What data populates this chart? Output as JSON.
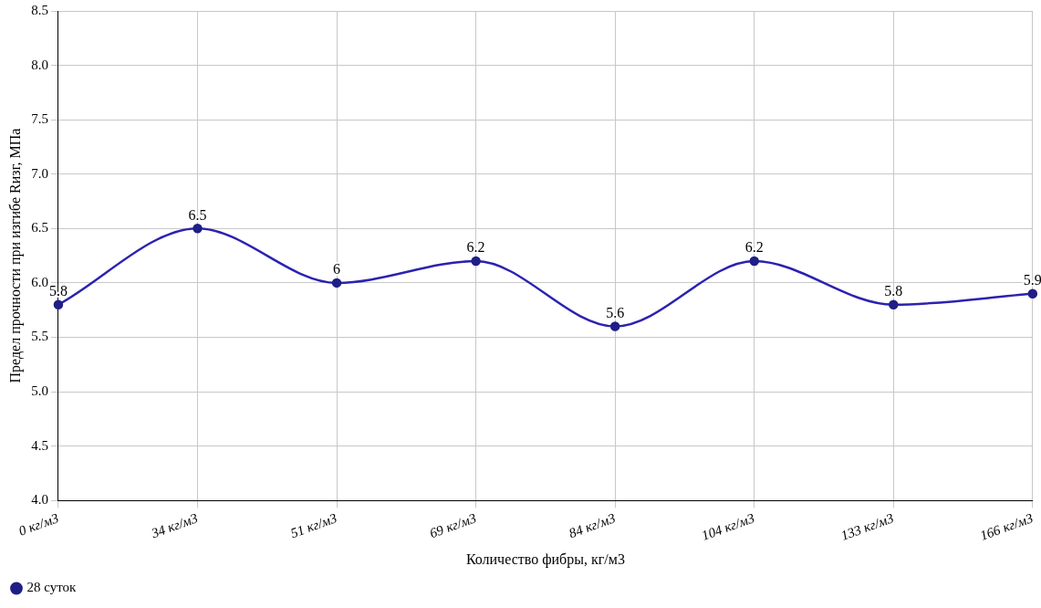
{
  "chart_data": {
    "type": "line",
    "xlabel": "Количество фибры, кг/м3",
    "ylabel": "Предел прочности при изгибе Rизг, МПа",
    "categories": [
      "0 кг/м3",
      "34 кг/м3",
      "51 кг/м3",
      "69 кг/м3",
      "84 кг/м3",
      "104 кг/м3",
      "133 кг/м3",
      "166 кг/м3"
    ],
    "series": [
      {
        "name": "28 суток",
        "color": "#2b22b0",
        "values": [
          5.8,
          6.5,
          6,
          6.2,
          5.6,
          6.2,
          5.8,
          5.9
        ]
      }
    ],
    "ylim": [
      4,
      8.5
    ],
    "yticks": [
      {
        "value": 4,
        "label": "4.0"
      },
      {
        "value": 4.5,
        "label": "4.5"
      },
      {
        "value": 5,
        "label": "5.0"
      },
      {
        "value": 5.5,
        "label": "5.5"
      },
      {
        "value": 6,
        "label": "6.0"
      },
      {
        "value": 6.5,
        "label": "6.5"
      },
      {
        "value": 7,
        "label": "7.0"
      },
      {
        "value": 7.5,
        "label": "7.5"
      },
      {
        "value": 8,
        "label": "8.0"
      },
      {
        "value": 8.5,
        "label": "8.5"
      }
    ],
    "grid": true,
    "legend": "bottom left",
    "marker": "circle",
    "line_style": "solid",
    "data_labels": true
  }
}
